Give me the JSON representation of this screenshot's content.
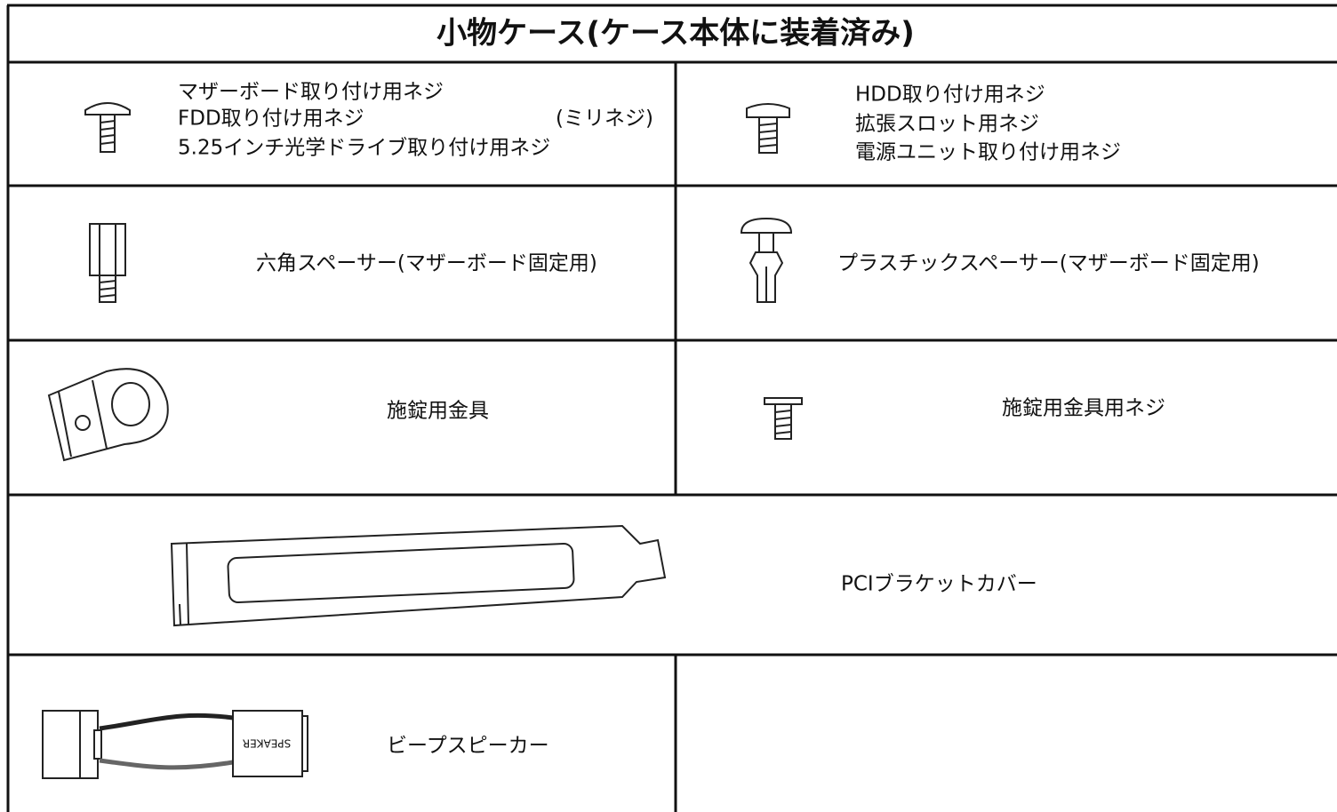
{
  "title": "小物ケース(ケース本体に装着済み)",
  "cells": [
    {
      "lines": [
        "マザーボード取り付け用ネジ",
        "FDD取り付け用ネジ",
        "5.25インチ光学ドライブ取り付け用ネジ"
      ],
      "note": "(ミリネジ)"
    },
    {
      "lines": [
        "HDD取り付け用ネジ",
        "拡張スロット用ネジ",
        "電源ユニット取り付け用ネジ"
      ]
    },
    {
      "label": "六角スペーサー(マザーボード固定用)"
    },
    {
      "label": "プラスチックスペーサー(マザーボード固定用)"
    },
    {
      "label": "施錠用金具"
    },
    {
      "label": "施錠用金具用ネジ"
    },
    {
      "label": "PCIブラケットカバー"
    },
    {
      "label": "ビープスピーカー",
      "icon_text": "SPEAKER"
    }
  ]
}
